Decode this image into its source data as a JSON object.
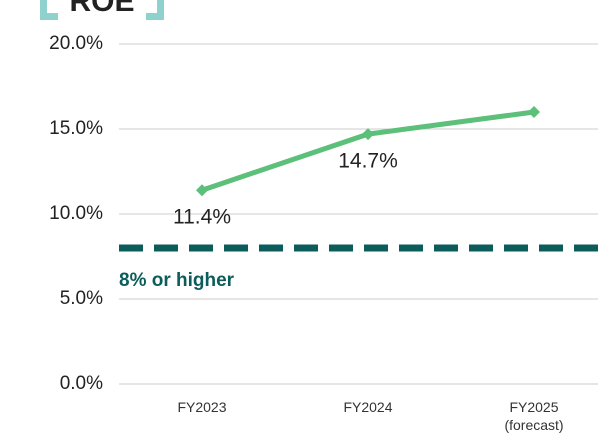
{
  "chart_data": {
    "type": "line",
    "title": "ROE",
    "categories": [
      "FY2023",
      "FY2024",
      "FY2025\n(forecast)"
    ],
    "series": [
      {
        "name": "ROE",
        "color": "#5cbf7a",
        "values": [
          11.4,
          14.7,
          16.0
        ],
        "value_labels": [
          "11.4%",
          "14.7%",
          null
        ]
      }
    ],
    "ylim": [
      0,
      20
    ],
    "yticks": [
      {
        "value": 0,
        "label": "0.0%"
      },
      {
        "value": 5,
        "label": "5.0%"
      },
      {
        "value": 10,
        "label": "10.0%"
      },
      {
        "value": 15,
        "label": "15.0%"
      },
      {
        "value": 20,
        "label": "20.0%"
      }
    ],
    "grid": true,
    "reference_line": {
      "value": 8,
      "label": "8% or higher",
      "color": "#0c5c5c"
    }
  }
}
